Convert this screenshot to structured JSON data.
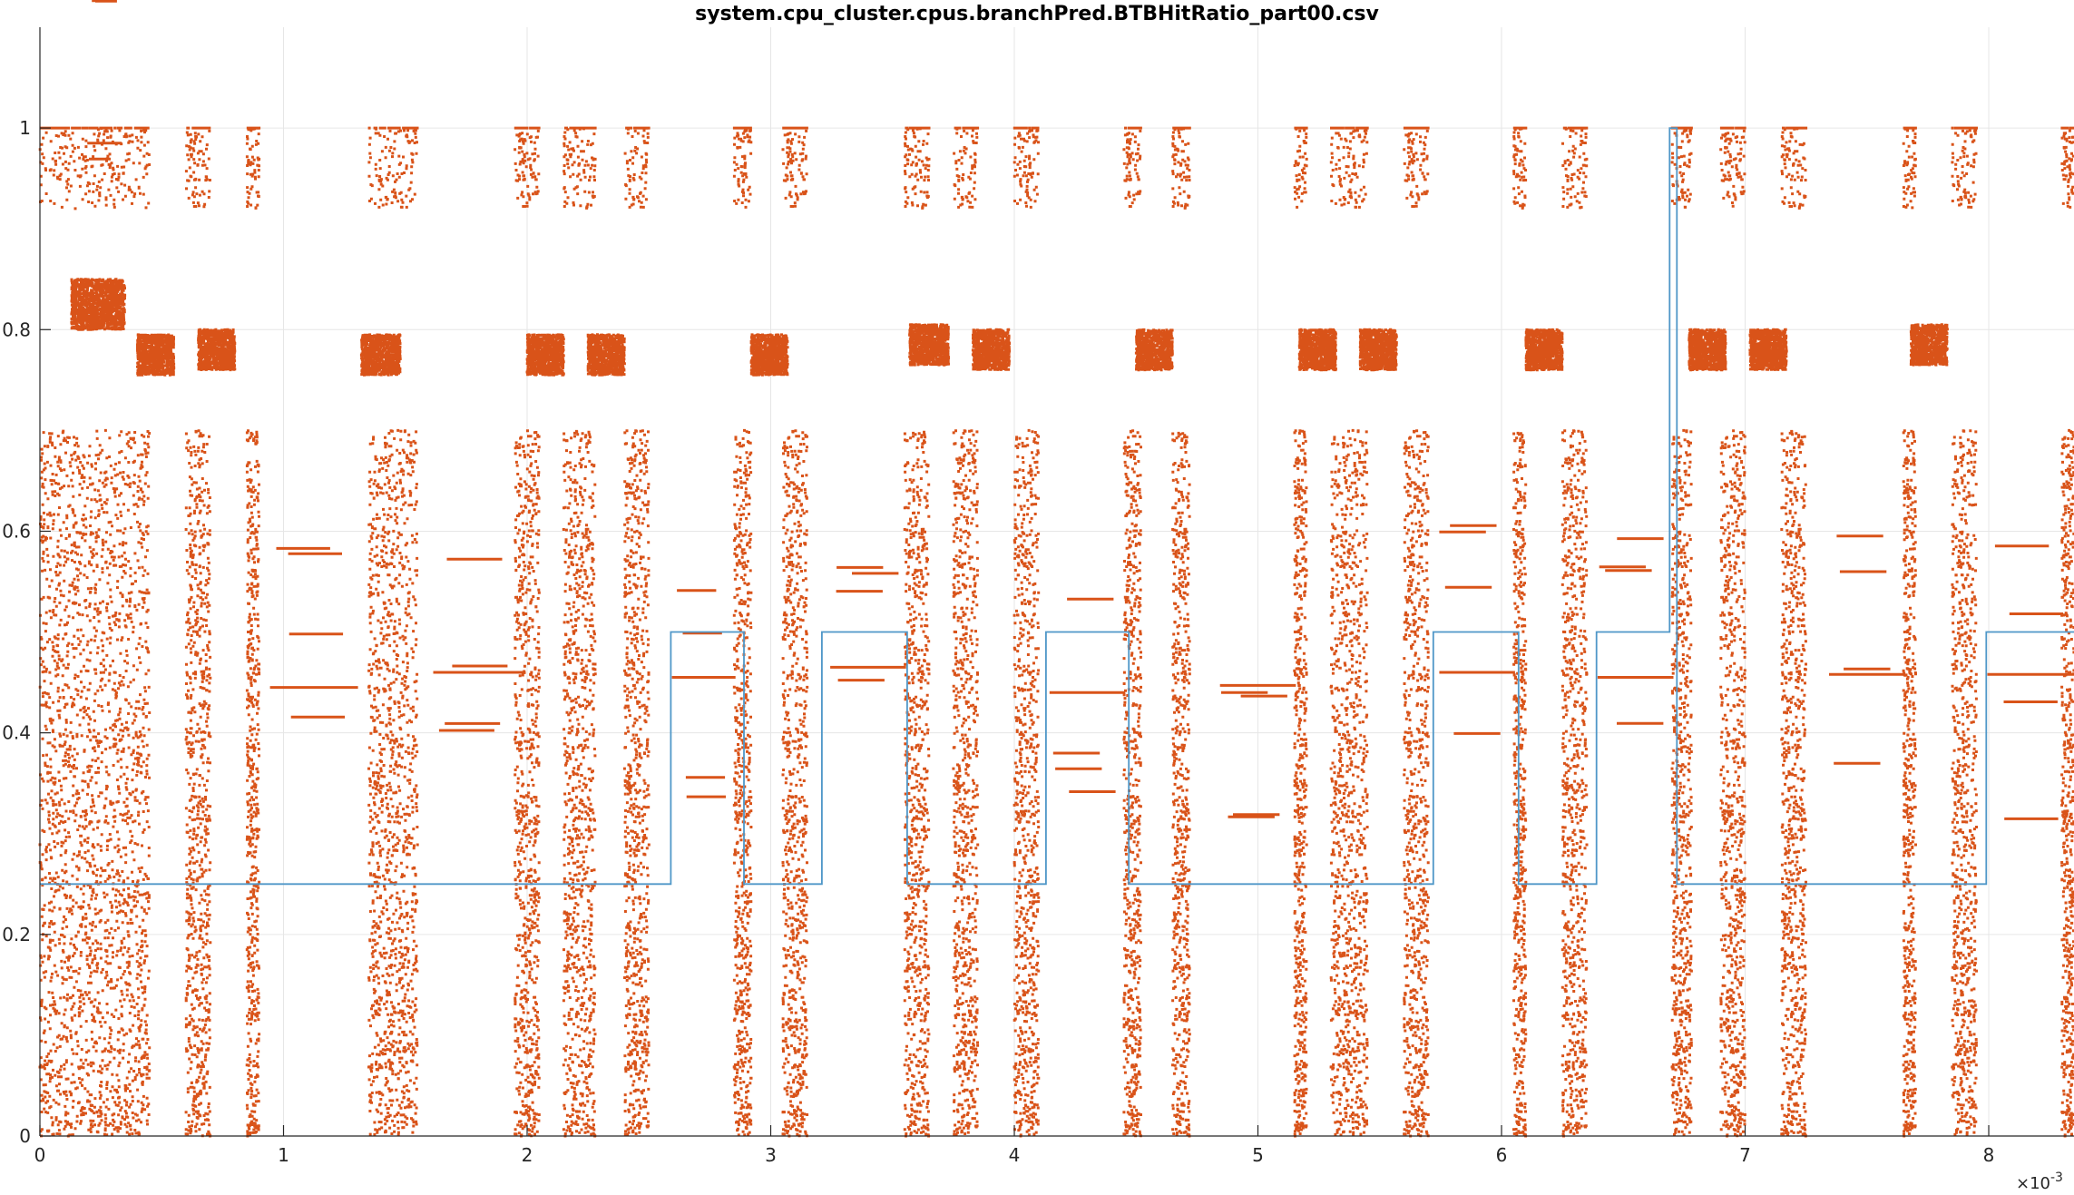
{
  "chart_data": {
    "type": "scatter",
    "title": "system.cpu_cluster.cpus.branchPred.BTBHitRatio_part00.csv",
    "xlabel": "",
    "ylabel": "",
    "x_exponent_label": "×10",
    "x_exponent_power": "-3",
    "x_scale": 0.001,
    "xlim": [
      0,
      8.35
    ],
    "ylim": [
      0,
      1.1
    ],
    "xticks": [
      0,
      1,
      2,
      3,
      4,
      5,
      6,
      7,
      8
    ],
    "xtick_labels": [
      "0",
      "1",
      "2",
      "3",
      "4",
      "5",
      "6",
      "7",
      "8"
    ],
    "yticks": [
      0,
      0.2,
      0.4,
      0.6,
      0.8,
      1
    ],
    "ytick_labels": [
      "0",
      "0.2",
      "0.4",
      "0.6",
      "0.8",
      "1"
    ],
    "grid": true,
    "colors": {
      "scatter": "#d95319",
      "line": "#4f97c8",
      "grid": "#e6e6e6",
      "axis": "#262626"
    },
    "scatter_bursts": [
      [
        0.0,
        0.45
      ],
      [
        0.6,
        0.7
      ],
      [
        0.85,
        0.9
      ],
      [
        1.35,
        1.55
      ],
      [
        1.95,
        2.05
      ],
      [
        2.15,
        2.28
      ],
      [
        2.4,
        2.5
      ],
      [
        2.85,
        2.92
      ],
      [
        3.05,
        3.15
      ],
      [
        3.55,
        3.65
      ],
      [
        3.75,
        3.85
      ],
      [
        4.0,
        4.1
      ],
      [
        4.45,
        4.52
      ],
      [
        4.65,
        4.72
      ],
      [
        5.15,
        5.2
      ],
      [
        5.3,
        5.45
      ],
      [
        5.6,
        5.7
      ],
      [
        6.05,
        6.1
      ],
      [
        6.25,
        6.35
      ],
      [
        6.7,
        6.78
      ],
      [
        6.9,
        7.0
      ],
      [
        7.15,
        7.25
      ],
      [
        7.65,
        7.7
      ],
      [
        7.85,
        7.95
      ],
      [
        8.3,
        8.35
      ]
    ],
    "scatter_plateaus": [
      {
        "x0": 0.13,
        "x1": 0.35,
        "y0": 0.8,
        "y1": 0.85
      },
      {
        "x0": 0.4,
        "x1": 0.55,
        "y0": 0.755,
        "y1": 0.795
      },
      {
        "x0": 0.65,
        "x1": 0.8,
        "y0": 0.76,
        "y1": 0.8
      },
      {
        "x0": 1.32,
        "x1": 1.48,
        "y0": 0.755,
        "y1": 0.795
      },
      {
        "x0": 2.0,
        "x1": 2.15,
        "y0": 0.755,
        "y1": 0.795
      },
      {
        "x0": 2.25,
        "x1": 2.4,
        "y0": 0.755,
        "y1": 0.795
      },
      {
        "x0": 2.92,
        "x1": 3.07,
        "y0": 0.755,
        "y1": 0.795
      },
      {
        "x0": 3.57,
        "x1": 3.73,
        "y0": 0.765,
        "y1": 0.805
      },
      {
        "x0": 3.83,
        "x1": 3.98,
        "y0": 0.76,
        "y1": 0.8
      },
      {
        "x0": 4.5,
        "x1": 4.65,
        "y0": 0.76,
        "y1": 0.8
      },
      {
        "x0": 5.17,
        "x1": 5.32,
        "y0": 0.76,
        "y1": 0.8
      },
      {
        "x0": 5.42,
        "x1": 5.57,
        "y0": 0.76,
        "y1": 0.8
      },
      {
        "x0": 6.1,
        "x1": 6.25,
        "y0": 0.76,
        "y1": 0.8
      },
      {
        "x0": 6.77,
        "x1": 6.92,
        "y0": 0.76,
        "y1": 0.8
      },
      {
        "x0": 7.02,
        "x1": 7.17,
        "y0": 0.76,
        "y1": 0.8
      },
      {
        "x0": 7.68,
        "x1": 7.83,
        "y0": 0.765,
        "y1": 0.805
      }
    ],
    "scatter_levels": [
      {
        "x0": 0.2,
        "x1": 0.33,
        "y": 0.985
      },
      {
        "x0": 0.95,
        "x1": 1.3,
        "y": 0.445
      },
      {
        "x0": 1.62,
        "x1": 1.98,
        "y": 0.46
      },
      {
        "x0": 2.6,
        "x1": 2.85,
        "y": 0.455
      },
      {
        "x0": 3.25,
        "x1": 3.55,
        "y": 0.465
      },
      {
        "x0": 4.15,
        "x1": 4.45,
        "y": 0.44
      },
      {
        "x0": 4.85,
        "x1": 5.15,
        "y": 0.447
      },
      {
        "x0": 5.75,
        "x1": 6.05,
        "y": 0.46
      },
      {
        "x0": 6.4,
        "x1": 6.7,
        "y": 0.455
      },
      {
        "x0": 7.35,
        "x1": 7.65,
        "y": 0.458
      },
      {
        "x0": 8.0,
        "x1": 8.35,
        "y": 0.458
      }
    ],
    "series": [
      {
        "type": "step",
        "x": [
          0,
          2.59,
          2.59,
          2.89,
          2.89,
          3.21,
          3.21,
          3.56,
          3.56,
          4.13,
          4.13,
          4.47,
          4.47,
          5.72,
          5.72,
          6.07,
          6.07,
          6.39,
          6.39,
          6.69,
          6.69,
          6.72,
          6.72,
          6.76,
          6.76,
          7.99,
          7.99,
          8.35
        ],
        "y": [
          0.25,
          0.25,
          0.5,
          0.5,
          0.25,
          0.25,
          0.5,
          0.5,
          0.25,
          0.25,
          0.5,
          0.5,
          0.25,
          0.25,
          0.5,
          0.5,
          0.25,
          0.25,
          0.5,
          0.5,
          1.0,
          1.0,
          0.25,
          0.25,
          0.25,
          0.25,
          0.5,
          0.5
        ]
      }
    ]
  }
}
